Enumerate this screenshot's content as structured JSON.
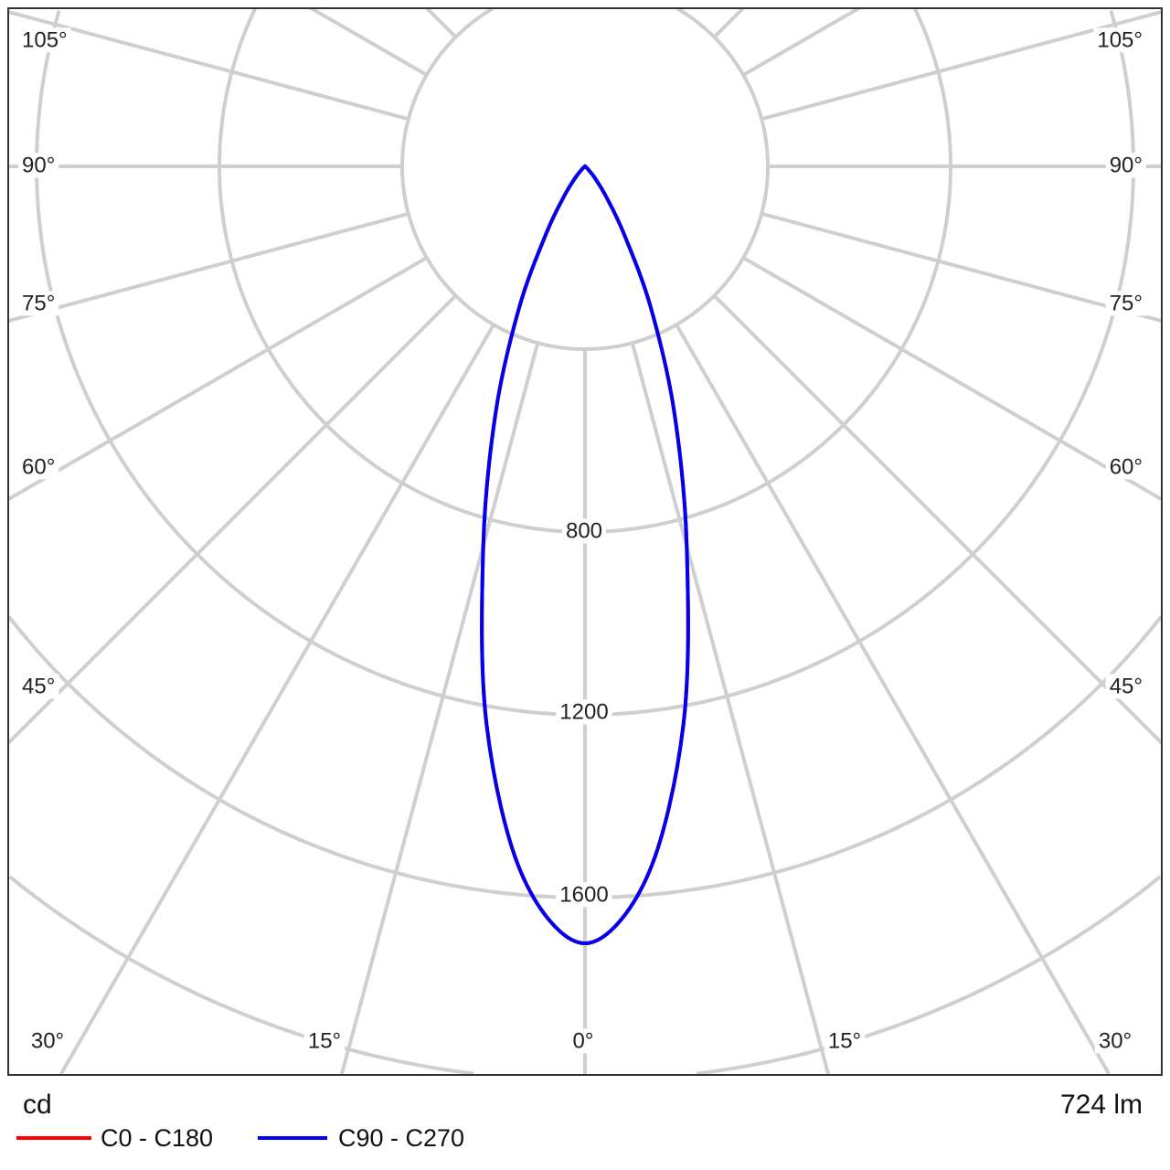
{
  "chart_data": {
    "type": "polar",
    "unit_label": "cd",
    "flux_label": "724 lm",
    "radial_ticks": [
      400,
      800,
      1200,
      1600,
      2000,
      2400
    ],
    "radial_tick_labels": [
      "800",
      "1200",
      "1600"
    ],
    "angle_labels_left": [
      "105°",
      "90°",
      "75°",
      "60°",
      "45°"
    ],
    "angle_labels_bottom": [
      "30°",
      "15°",
      "0°",
      "15°",
      "30°"
    ],
    "angle_labels_right": [
      "105°",
      "90°",
      "75°",
      "60°",
      "45°"
    ],
    "grid": true,
    "angles_deg": [
      0,
      5,
      10,
      15,
      20,
      25,
      30,
      35,
      40,
      45,
      50,
      60,
      70,
      80,
      90
    ],
    "series": [
      {
        "name": "C0 - C180",
        "color": "#ff0000",
        "values": [
          1700,
          1560,
          1240,
          860,
          570,
          340,
          170,
          80,
          35,
          12,
          4,
          0,
          0,
          0,
          0
        ]
      },
      {
        "name": "C90 - C270",
        "color": "#0000ee",
        "values": [
          1700,
          1560,
          1240,
          860,
          570,
          340,
          170,
          80,
          35,
          12,
          4,
          0,
          0,
          0,
          0
        ]
      }
    ],
    "legend_position": "bottom-left"
  }
}
